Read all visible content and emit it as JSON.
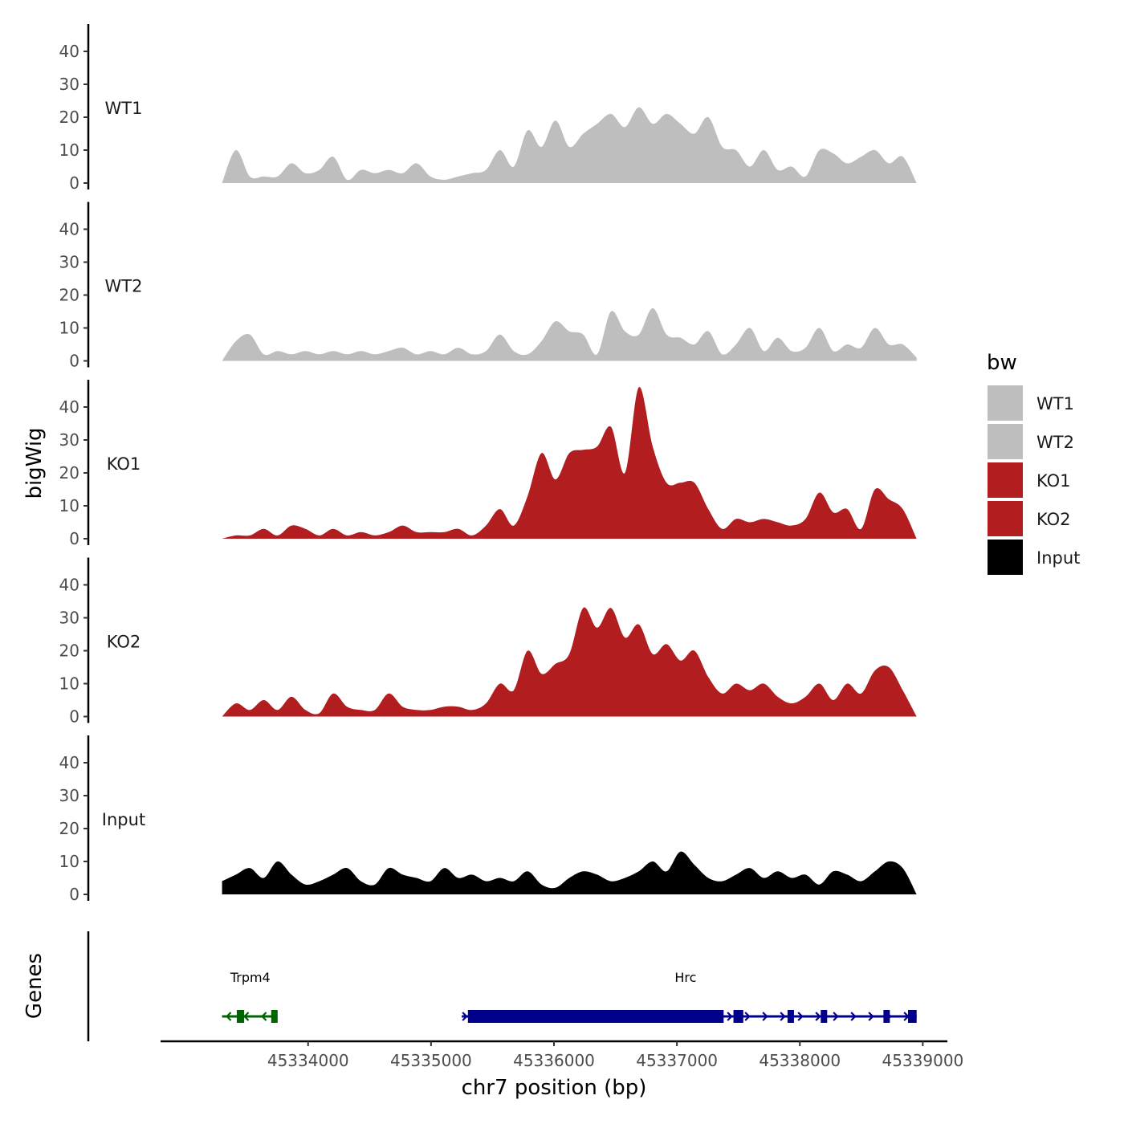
{
  "chart_data": {
    "type": "area",
    "title": "",
    "xlabel": "chr7 position (bp)",
    "ylabel": "bigWig",
    "genes_label": "Genes",
    "xlim": [
      45332800,
      45339200
    ],
    "ylim": [
      0,
      46
    ],
    "x_ticks": [
      45334000,
      45335000,
      45336000,
      45337000,
      45338000,
      45339000
    ],
    "y_ticks": [
      0,
      10,
      20,
      30,
      40
    ],
    "x_range_data": [
      45333300,
      45338950
    ],
    "legend": {
      "title": "bw",
      "position": "right",
      "entries": [
        {
          "label": "WT1",
          "color": "#bebebe"
        },
        {
          "label": "WT2",
          "color": "#bebebe"
        },
        {
          "label": "KO1",
          "color": "#b21d1f"
        },
        {
          "label": "KO2",
          "color": "#b21d1f"
        },
        {
          "label": "Input",
          "color": "#000000"
        }
      ]
    },
    "series": [
      {
        "name": "WT1",
        "color": "#bebebe",
        "values": [
          0,
          10,
          2,
          2,
          2,
          6,
          3,
          4,
          8,
          1,
          4,
          3,
          4,
          3,
          6,
          2,
          1,
          2,
          3,
          4,
          10,
          5,
          16,
          11,
          19,
          11,
          15,
          18,
          21,
          17,
          23,
          18,
          21,
          18,
          15,
          20,
          11,
          10,
          5,
          10,
          4,
          5,
          2,
          10,
          9,
          6,
          8,
          10,
          6,
          8,
          0
        ]
      },
      {
        "name": "WT2",
        "color": "#bebebe",
        "values": [
          0,
          6,
          8,
          2,
          3,
          2,
          3,
          2,
          3,
          2,
          3,
          2,
          3,
          4,
          2,
          3,
          2,
          4,
          2,
          3,
          8,
          3,
          2,
          6,
          12,
          9,
          8,
          2,
          15,
          9,
          8,
          16,
          8,
          7,
          5,
          9,
          2,
          5,
          10,
          3,
          7,
          3,
          4,
          10,
          3,
          5,
          4,
          10,
          5,
          5,
          1
        ]
      },
      {
        "name": "KO1",
        "color": "#b21d1f",
        "values": [
          0,
          1,
          1,
          3,
          1,
          4,
          3,
          1,
          3,
          1,
          2,
          1,
          2,
          4,
          2,
          2,
          2,
          3,
          1,
          4,
          9,
          4,
          13,
          26,
          18,
          26,
          27,
          28,
          34,
          20,
          46,
          28,
          17,
          17,
          17,
          9,
          3,
          6,
          5,
          6,
          5,
          4,
          6,
          14,
          8,
          9,
          3,
          15,
          12,
          9,
          0
        ]
      },
      {
        "name": "KO2",
        "color": "#b21d1f",
        "values": [
          0,
          4,
          2,
          5,
          2,
          6,
          2,
          1,
          7,
          3,
          2,
          2,
          7,
          3,
          2,
          2,
          3,
          3,
          2,
          4,
          10,
          8,
          20,
          13,
          16,
          19,
          33,
          27,
          33,
          24,
          28,
          19,
          22,
          17,
          20,
          12,
          7,
          10,
          8,
          10,
          6,
          4,
          6,
          10,
          5,
          10,
          7,
          14,
          15,
          8,
          0
        ]
      },
      {
        "name": "Input",
        "color": "#000000",
        "values": [
          4,
          6,
          8,
          5,
          10,
          6,
          3,
          4,
          6,
          8,
          4,
          3,
          8,
          6,
          5,
          4,
          8,
          5,
          6,
          4,
          5,
          4,
          7,
          3,
          2,
          5,
          7,
          6,
          4,
          5,
          7,
          10,
          7,
          13,
          9,
          5,
          4,
          6,
          8,
          5,
          7,
          5,
          6,
          3,
          7,
          6,
          4,
          7,
          10,
          8,
          0
        ]
      }
    ],
    "genes": [
      {
        "name": "Trpm4",
        "strand": "-",
        "color": "#006400",
        "start": 45333300,
        "end": 45333750,
        "exons": [
          [
            45333420,
            45333480
          ],
          [
            45333700,
            45333740
          ]
        ]
      },
      {
        "name": "Hrc",
        "strand": "+",
        "color": "#00008b",
        "start": 45335250,
        "end": 45338950,
        "exons": [
          [
            45335300,
            45337380
          ],
          [
            45337460,
            45337540
          ],
          [
            45337900,
            45337950
          ],
          [
            45338170,
            45338200
          ],
          [
            45338680,
            45338720
          ],
          [
            45338880,
            45338950
          ]
        ]
      }
    ]
  }
}
